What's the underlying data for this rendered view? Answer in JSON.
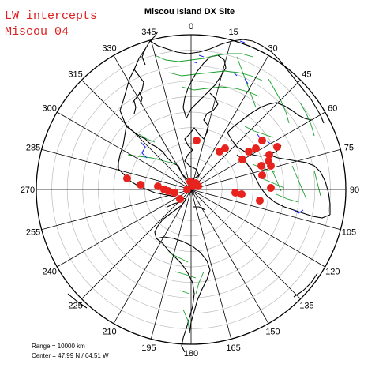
{
  "title": "Miscou Island DX Site",
  "overlay": {
    "line1": "LW intercepts",
    "line2": "Miscou 04"
  },
  "info": {
    "range": "Range = 10000 km",
    "center": "Center = 47.99 N / 64.51 W"
  },
  "colors": {
    "marker": "#e8231e",
    "coastline": "#000000",
    "borders": "#16a02a",
    "lakes": "#1e30ff",
    "grid": "#bbbbbb",
    "spokes": "#000000"
  },
  "azimuth_labels": [
    "0",
    "15",
    "30",
    "45",
    "60",
    "75",
    "90",
    "105",
    "120",
    "135",
    "150",
    "165",
    "180",
    "195",
    "210",
    "225",
    "240",
    "255",
    "270",
    "285",
    "300",
    "315",
    "330",
    "345"
  ],
  "intercept_count": 29
}
